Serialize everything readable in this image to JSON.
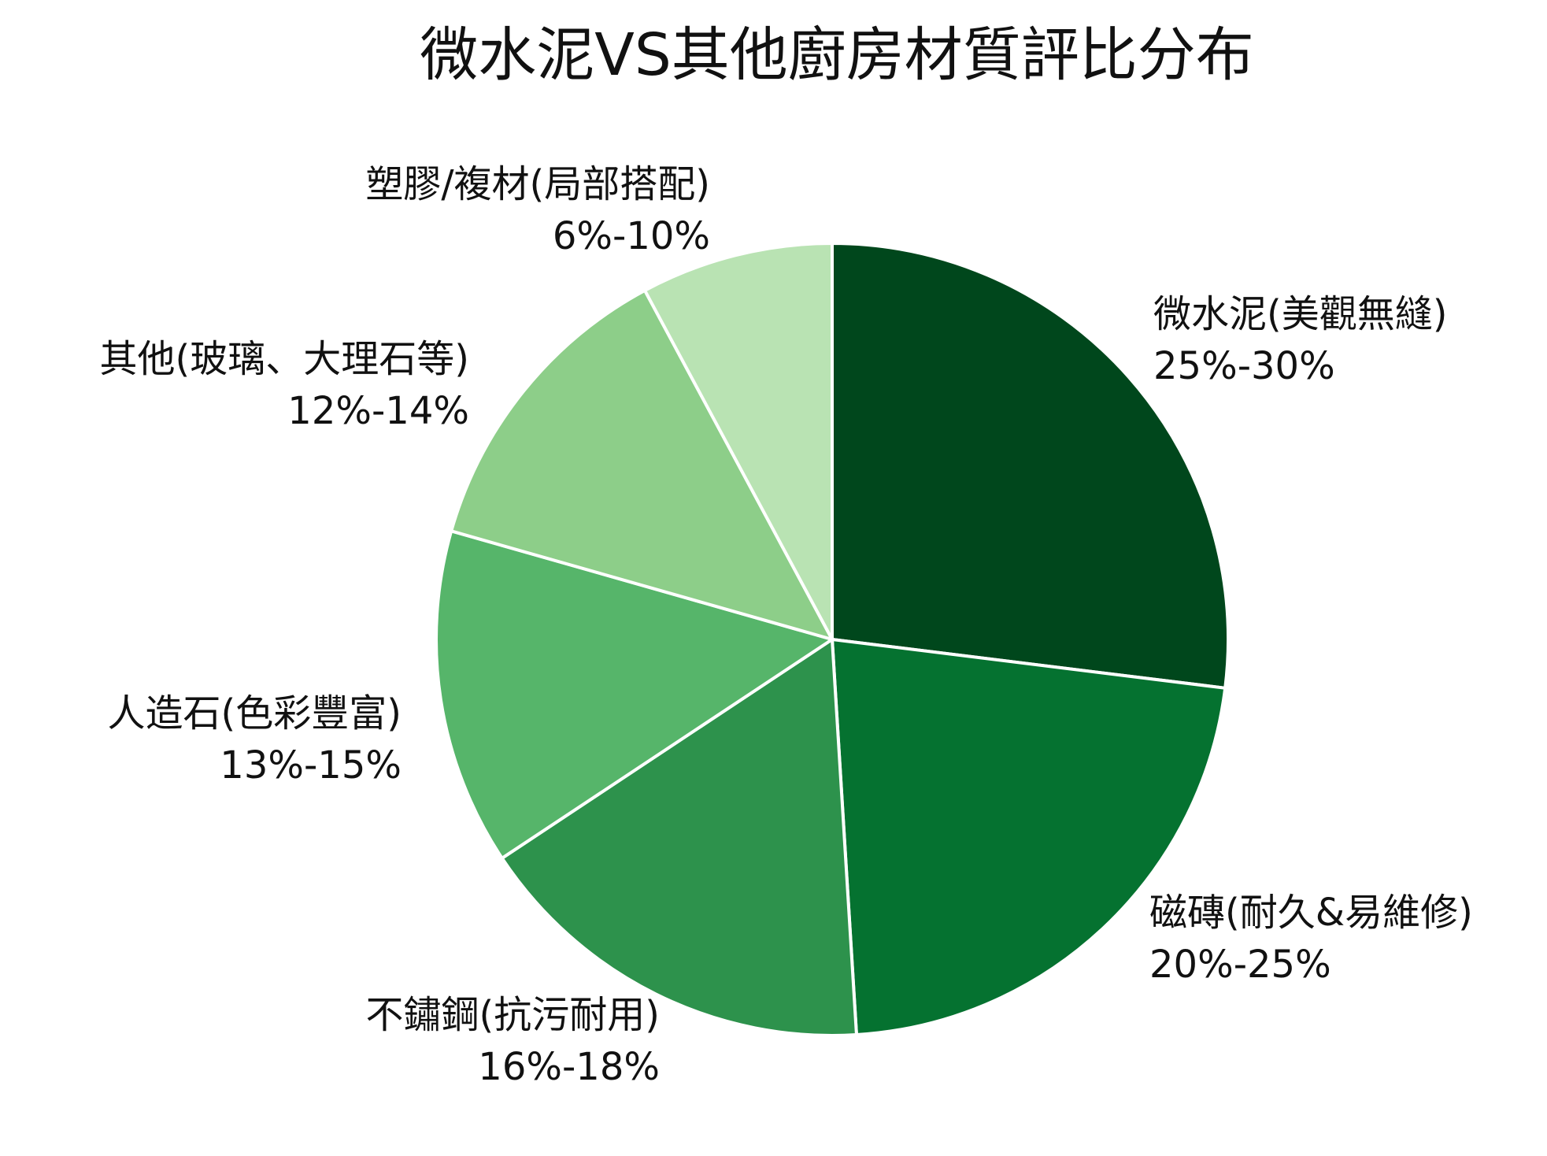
{
  "chart_data": {
    "type": "pie",
    "title": "微水泥VS其他廚房材質評比分布",
    "slices": [
      {
        "name": "微水泥(美觀無縫)",
        "range": "25%-30%",
        "value": 27.5,
        "color": "#00471c"
      },
      {
        "name": "磁磚(耐久&易維修)",
        "range": "20%-25%",
        "value": 22.5,
        "color": "#057230"
      },
      {
        "name": "不鏽鋼(抗污耐用)",
        "range": "16%-18%",
        "value": 17,
        "color": "#2d924c"
      },
      {
        "name": "人造石(色彩豐富)",
        "range": "13%-15%",
        "value": 14,
        "color": "#56b56a"
      },
      {
        "name": "其他(玻璃、大理石等)",
        "range": "12%-14%",
        "value": 13,
        "color": "#8dce89"
      },
      {
        "name": "塑膠/複材(局部搭配)",
        "range": "6%-10%",
        "value": 8,
        "color": "#b9e3b3"
      }
    ],
    "start_angle": "12 o'clock",
    "direction": "clockwise",
    "slice_border_color": "#ffffff"
  }
}
